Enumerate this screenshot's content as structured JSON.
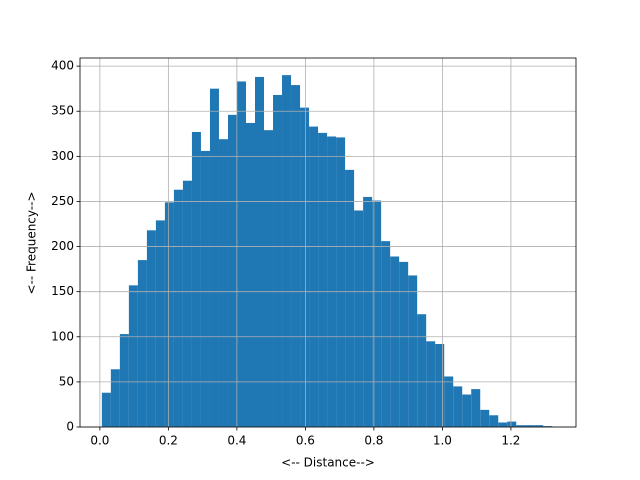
{
  "chart_data": {
    "type": "histogram",
    "xlabel": "<-- Distance-->",
    "ylabel": "<-- Frequency-->",
    "bins": [
      0.0058,
      0.0321,
      0.0584,
      0.0847,
      0.111,
      0.1373,
      0.1636,
      0.1899,
      0.2162,
      0.2425,
      0.2688,
      0.2951,
      0.3214,
      0.3477,
      0.374,
      0.4003,
      0.4266,
      0.4529,
      0.4792,
      0.5055,
      0.5318,
      0.5581,
      0.5844,
      0.6107,
      0.637,
      0.6633,
      0.6896,
      0.7159,
      0.7422,
      0.7685,
      0.7948,
      0.8211,
      0.8474,
      0.8737,
      0.9,
      0.9263,
      0.9526,
      0.9789,
      1.0052,
      1.0315,
      1.0578,
      1.0841,
      1.1104,
      1.1367,
      1.163,
      1.1893,
      1.2156,
      1.2419,
      1.2682,
      1.2945,
      1.3208
    ],
    "values": [
      38,
      64,
      103,
      157,
      185,
      218,
      229,
      249,
      263,
      273,
      327,
      306,
      375,
      319,
      346,
      383,
      337,
      388,
      329,
      368,
      390,
      379,
      354,
      333,
      326,
      322,
      321,
      285,
      240,
      255,
      251,
      206,
      189,
      183,
      168,
      125,
      95,
      92,
      56,
      45,
      36,
      42,
      19,
      13,
      5,
      6,
      2,
      2,
      2,
      1
    ],
    "color": "#1f77b4",
    "xlim": [
      -0.058,
      1.39
    ],
    "ylim": [
      0,
      409
    ],
    "xticks": [
      {
        "value": 0,
        "label": "0.0"
      },
      0.2,
      0.4,
      0.6,
      0.8,
      {
        "value": 1,
        "label": "1.0"
      },
      1.2
    ],
    "yticks": [
      0,
      50,
      100,
      150,
      200,
      250,
      300,
      350,
      400
    ],
    "grid": true
  }
}
